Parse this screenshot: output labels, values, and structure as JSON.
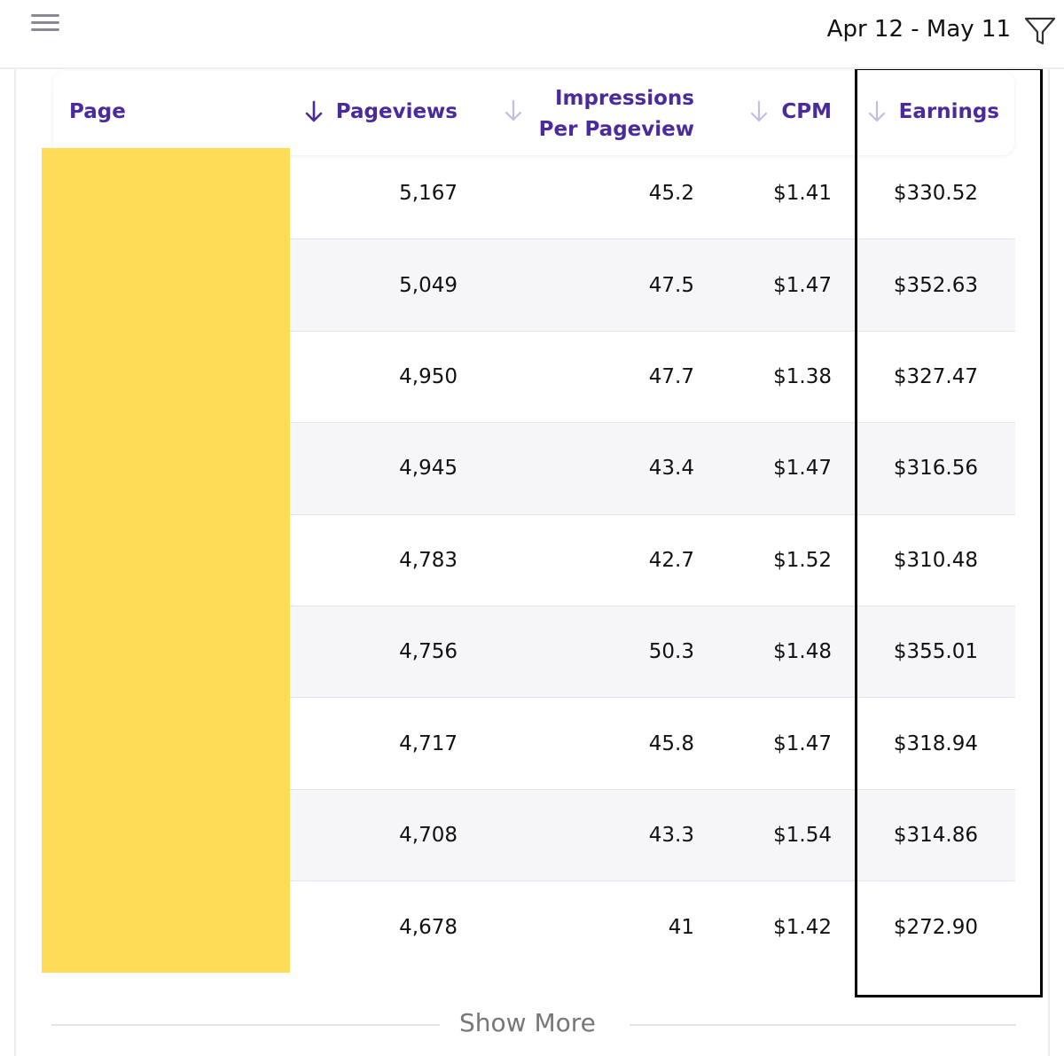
{
  "header": {
    "date_range": "Apr 12 - May 11"
  },
  "icons": {
    "menu": "hamburger-menu-icon",
    "filter": "filter-funnel-icon",
    "sort": "sort-down-arrow-icon"
  },
  "colors": {
    "header_text": "#4b2a9e",
    "sort_active": "#4b2a9e",
    "sort_inactive": "#c4bce6",
    "redaction": "#ffdc55",
    "alt_row": "#f6f6f9"
  },
  "table": {
    "columns": {
      "page": "Page",
      "pageviews": "Pageviews",
      "ipp_line1": "Impressions",
      "ipp_line2": "Per Pageview",
      "cpm": "CPM",
      "earnings": "Earnings"
    },
    "active_sort": "pageviews",
    "rows": [
      {
        "pageviews": "5,167",
        "ipp": "45.2",
        "cpm": "$1.41",
        "earnings": "$330.52"
      },
      {
        "pageviews": "5,049",
        "ipp": "47.5",
        "cpm": "$1.47",
        "earnings": "$352.63"
      },
      {
        "pageviews": "4,950",
        "ipp": "47.7",
        "cpm": "$1.38",
        "earnings": "$327.47"
      },
      {
        "pageviews": "4,945",
        "ipp": "43.4",
        "cpm": "$1.47",
        "earnings": "$316.56"
      },
      {
        "pageviews": "4,783",
        "ipp": "42.7",
        "cpm": "$1.52",
        "earnings": "$310.48"
      },
      {
        "pageviews": "4,756",
        "ipp": "50.3",
        "cpm": "$1.48",
        "earnings": "$355.01"
      },
      {
        "pageviews": "4,717",
        "ipp": "45.8",
        "cpm": "$1.47",
        "earnings": "$318.94"
      },
      {
        "pageviews": "4,708",
        "ipp": "43.3",
        "cpm": "$1.54",
        "earnings": "$314.86"
      },
      {
        "pageviews": "4,678",
        "ipp": "41",
        "cpm": "$1.42",
        "earnings": "$272.90"
      }
    ]
  },
  "footer": {
    "show_more": "Show More"
  }
}
